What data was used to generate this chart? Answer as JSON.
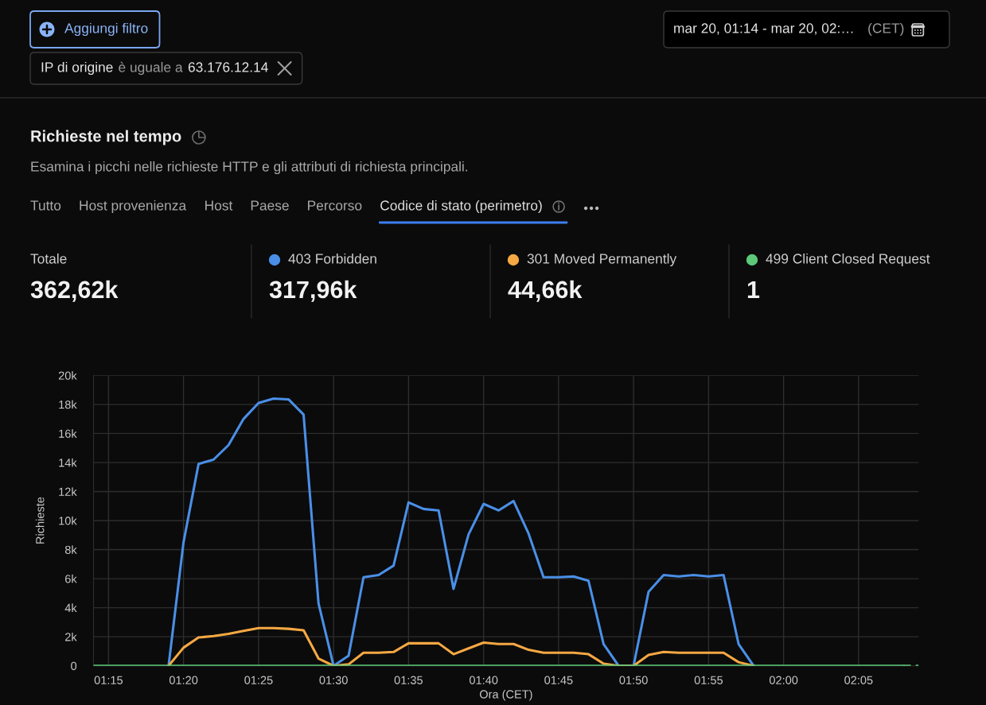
{
  "chart_data": {
    "type": "line",
    "title": "Richieste nel tempo",
    "subtitle": "Esamina i picchi nelle richieste HTTP e gli attributi di richiesta principali.",
    "xlabel": "Ora (CET)",
    "ylabel": "Richieste",
    "annotations": [
      "Aggiungi filtro",
      "IP di origine",
      "è uguale a",
      "63.176.12.14",
      "mar 20, 01:14 - mar 20, 02:…",
      "(CET)",
      "Tutto",
      "Host provenienza",
      "Host",
      "Paese",
      "Percorso",
      "Codice di stato (perimetro)",
      "Totale",
      "362,62k",
      "317,96k",
      "44,66k",
      "1"
    ],
    "x": [
      1.2333,
      1.25,
      1.2667,
      1.2833,
      1.3,
      1.3167,
      1.3333,
      1.35,
      1.3667,
      1.3833,
      1.4,
      1.4167,
      1.4333,
      1.45,
      1.4667,
      1.4833,
      1.5,
      1.5167,
      1.5333,
      1.55,
      1.5667,
      1.5833,
      1.6,
      1.6167,
      1.6333,
      1.65,
      1.6667,
      1.6833,
      1.7,
      1.7167,
      1.7333,
      1.75,
      1.7667,
      1.7833,
      1.8,
      1.8167,
      1.8333,
      1.85,
      1.8667,
      1.8833,
      1.9,
      1.9167,
      1.9333,
      1.95,
      1.9667,
      1.9833,
      2.0,
      2.0167,
      2.0333,
      2.05,
      2.0667,
      2.0833,
      2.1,
      2.1167,
      2.1333
    ],
    "series": [
      {
        "name": "403 Forbidden",
        "color": "#4a8fe7",
        "values": [
          null,
          null,
          null,
          null,
          null,
          0,
          8500,
          13900,
          14200,
          15200,
          17000,
          18100,
          18400,
          18350,
          17300,
          4300,
          0,
          700,
          6100,
          6250,
          6900,
          11250,
          10800,
          10700,
          5300,
          9050,
          11150,
          10700,
          11350,
          9100,
          6100,
          6100,
          6150,
          5850,
          1500,
          0,
          0,
          5100,
          6250,
          6150,
          6250,
          6150,
          6250,
          1500,
          0,
          null,
          null,
          null,
          null,
          null,
          null,
          null,
          null,
          null,
          null
        ]
      },
      {
        "name": "301 Moved Permanently",
        "color": "#f5a843",
        "values": [
          null,
          null,
          null,
          null,
          null,
          0,
          1250,
          1950,
          2050,
          2200,
          2400,
          2600,
          2600,
          2550,
          2450,
          500,
          0,
          100,
          900,
          900,
          950,
          1550,
          1550,
          1550,
          800,
          1200,
          1600,
          1500,
          1500,
          1100,
          900,
          900,
          900,
          800,
          150,
          0,
          0,
          750,
          950,
          900,
          900,
          900,
          900,
          250,
          0,
          null,
          null,
          null,
          null,
          null,
          null,
          null,
          null,
          null,
          null
        ]
      },
      {
        "name": "499 Client Closed Request",
        "color": "#5cc878",
        "values": [
          0,
          0,
          0,
          0,
          0,
          0,
          0,
          0,
          0,
          0,
          0,
          0,
          0,
          0,
          0,
          0,
          0,
          0,
          0,
          0,
          0,
          0,
          0,
          0,
          0,
          0,
          0,
          0,
          0,
          0,
          0,
          0,
          0,
          0,
          0,
          0,
          0,
          0,
          0,
          0,
          0,
          0,
          0,
          0,
          0,
          0,
          0,
          0,
          0,
          0,
          0,
          0,
          0,
          0,
          0
        ]
      },
      {
        "color": "#5cc878",
        "line_style": "dashed",
        "x": [
          2.1333,
          2.15
        ],
        "values": [
          0,
          0
        ]
      }
    ],
    "xlim": [
      1.2333,
      2.15
    ],
    "xticks": [
      {
        "value": 1.25,
        "label": "01:15"
      },
      {
        "value": 1.3333,
        "label": "01:20"
      },
      {
        "value": 1.4167,
        "label": "01:25"
      },
      {
        "value": 1.5,
        "label": "01:30"
      },
      {
        "value": 1.5833,
        "label": "01:35"
      },
      {
        "value": 1.6667,
        "label": "01:40"
      },
      {
        "value": 1.75,
        "label": "01:45"
      },
      {
        "value": 1.8333,
        "label": "01:50"
      },
      {
        "value": 1.9167,
        "label": "01:55"
      },
      {
        "value": 2.0,
        "label": "02:00"
      },
      {
        "value": 2.0833,
        "label": "02:05"
      }
    ],
    "ylim": [
      0,
      20000
    ],
    "yticks": [
      0,
      {
        "value": 2000,
        "label": "2k"
      },
      {
        "value": 4000,
        "label": "4k"
      },
      {
        "value": 6000,
        "label": "6k"
      },
      {
        "value": 8000,
        "label": "8k"
      },
      {
        "value": 10000,
        "label": "10k"
      },
      {
        "value": 12000,
        "label": "12k"
      },
      {
        "value": 14000,
        "label": "14k"
      },
      {
        "value": 16000,
        "label": "16k"
      },
      {
        "value": 18000,
        "label": "18k"
      },
      {
        "value": 20000,
        "label": "20k"
      }
    ],
    "grid": true,
    "legend": "top",
    "marker": "none",
    "line_style": "solid"
  }
}
